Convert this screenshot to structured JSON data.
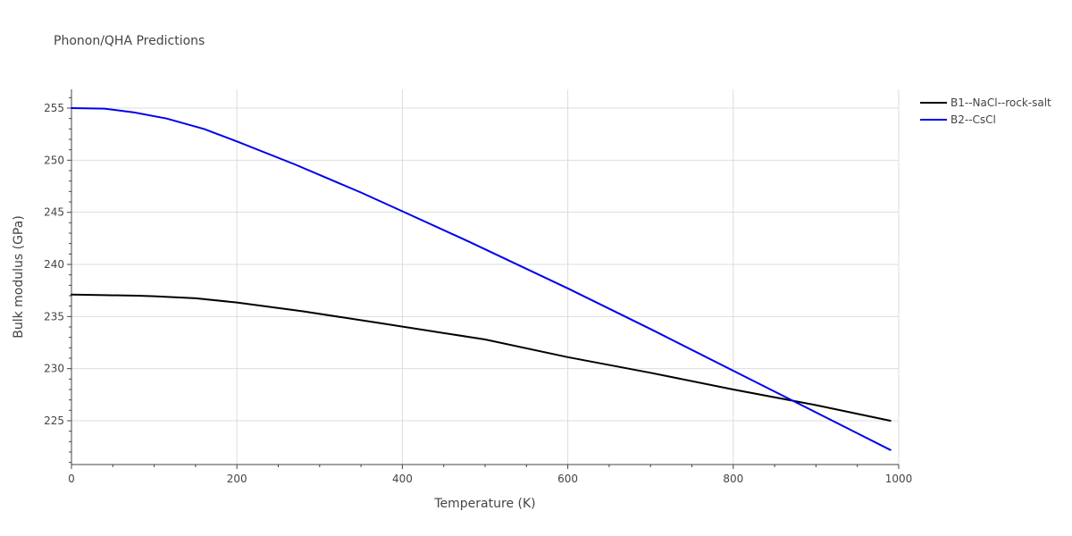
{
  "chart_data": {
    "type": "line",
    "title": "Phonon/QHA Predictions",
    "xlabel": "Temperature (K)",
    "ylabel": "Bulk modulus (GPa)",
    "xlim": [
      0,
      1000
    ],
    "ylim": [
      220.8,
      256.8
    ],
    "xticks": [
      "0",
      "200",
      "400",
      "600",
      "800",
      "1000"
    ],
    "yticks": [
      "225",
      "230",
      "235",
      "240",
      "245",
      "250",
      "255"
    ],
    "grid": true,
    "legend": "top-right",
    "series": [
      {
        "name": "B1--NaCl--rock-salt",
        "color": "#000000",
        "x": [
          0,
          40,
          80,
          100,
          150,
          200,
          280,
          370,
          500,
          600,
          700,
          800,
          900,
          990
        ],
        "y": [
          237.1,
          237.05,
          237.0,
          236.95,
          236.75,
          236.35,
          235.5,
          234.4,
          232.8,
          231.1,
          229.6,
          228.0,
          226.5,
          225.0
        ]
      },
      {
        "name": "B2--CsCl",
        "color": "#0000ee",
        "x": [
          0,
          40,
          75,
          115,
          160,
          200,
          270,
          350,
          400,
          480,
          600,
          700,
          800,
          875,
          950,
          990
        ],
        "y": [
          255.0,
          254.95,
          254.6,
          254.0,
          253.0,
          251.8,
          249.6,
          246.9,
          245.1,
          242.2,
          237.7,
          233.8,
          229.8,
          226.8,
          223.8,
          222.2
        ]
      }
    ]
  }
}
